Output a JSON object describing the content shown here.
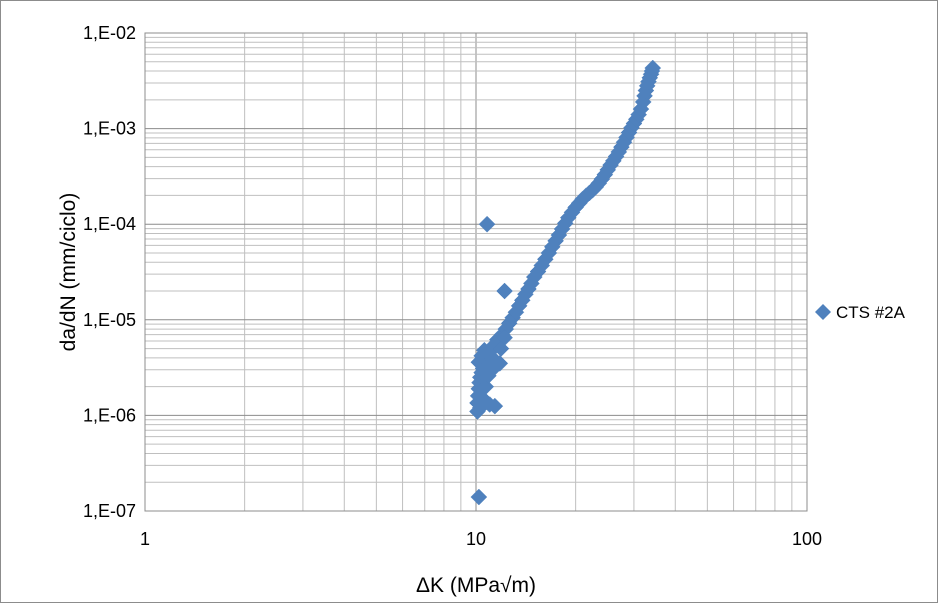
{
  "chart_data": {
    "type": "scatter",
    "title": "",
    "xlabel": "ΔK (MPa√m)",
    "ylabel": "da/dN (mm/ciclo)",
    "xscale": "log",
    "yscale": "log",
    "xlim": [
      1,
      100
    ],
    "ylim": [
      1e-07,
      0.01
    ],
    "x_tick_labels": [
      "1",
      "10",
      "100"
    ],
    "y_tick_labels": [
      "1,E-07",
      "1,E-06",
      "1,E-05",
      "1,E-04",
      "1,E-03",
      "1,E-02"
    ],
    "grid": "major and minor, both axes",
    "legend_position": "right",
    "marker": "diamond",
    "colors": {
      "series": "#4f81bd",
      "grid": "#bfbfbf",
      "major_grid": "#8c8c8c",
      "frame": "#8c8c8c"
    },
    "series": [
      {
        "name": "CTS #2A",
        "x": [
          10.1,
          10.1,
          10.15,
          10.2,
          10.25,
          10.3,
          10.4,
          10.5,
          10.6,
          10.7,
          10.8,
          10.9,
          11.0,
          11.1,
          11.2,
          10.3,
          10.5,
          10.7,
          10.9,
          11.1,
          11.3,
          10.2,
          10.4,
          10.6,
          11.0,
          11.4,
          11.5,
          11.2,
          11.6,
          11.8,
          12.0,
          12.3,
          12.6,
          12.9,
          12.2,
          11.9,
          13.2,
          13.5,
          13.8,
          14.1,
          14.4,
          14.7,
          15.0,
          15.4,
          15.8,
          16.2,
          16.6,
          17.0,
          17.4,
          17.8,
          18.2,
          18.6,
          19.0,
          19.5,
          20.0,
          20.5,
          21.0,
          21.5,
          22.0,
          22.5,
          23.0,
          23.5,
          24.0,
          24.5,
          25.0,
          25.5,
          26.0,
          26.5,
          27.0,
          27.5,
          28.0,
          28.5,
          29.0,
          29.5,
          30.0,
          30.5,
          31.0,
          31.5,
          32.0,
          32.3,
          32.6,
          32.9,
          33.2,
          33.5,
          33.8,
          34.0,
          34.2,
          10.2,
          10.8,
          12.2
        ],
        "y": [
          1.1e-06,
          1.35e-06,
          1.6e-06,
          1.9e-06,
          2.2e-06,
          2.5e-06,
          2.8e-06,
          3.1e-06,
          3.4e-06,
          3.7e-06,
          4e-06,
          4.3e-06,
          4.6e-06,
          4.9e-06,
          5.2e-06,
          1.2e-06,
          1.5e-06,
          2e-06,
          2.6e-06,
          3.3e-06,
          3.9e-06,
          3.6e-06,
          4.2e-06,
          4.8e-06,
          1.3e-06,
          1.25e-06,
          5.6e-06,
          3e-06,
          6.2e-06,
          3.5e-06,
          7e-06,
          8e-06,
          9.2e-06,
          1.05e-05,
          6.5e-06,
          5e-06,
          1.2e-05,
          1.4e-05,
          1.6e-05,
          1.85e-05,
          2.1e-05,
          2.4e-05,
          2.8e-05,
          3.2e-05,
          3.7e-05,
          4.3e-05,
          5e-05,
          5.8e-05,
          6.7e-05,
          7.7e-05,
          8.9e-05,
          0.000102,
          0.000117,
          0.000133,
          0.00015,
          0.000166,
          0.000183,
          0.000198,
          0.000212,
          0.000227,
          0.000245,
          0.000268,
          0.000296,
          0.00033,
          0.00037,
          0.000415,
          0.00046,
          0.00051,
          0.00057,
          0.00064,
          0.00072,
          0.00081,
          0.00091,
          0.00102,
          0.00113,
          0.00125,
          0.0014,
          0.0016,
          0.0019,
          0.0022,
          0.0025,
          0.0028,
          0.0031,
          0.0034,
          0.0037,
          0.004,
          0.0043,
          1.4e-07,
          0.0001,
          2e-05
        ]
      }
    ]
  }
}
